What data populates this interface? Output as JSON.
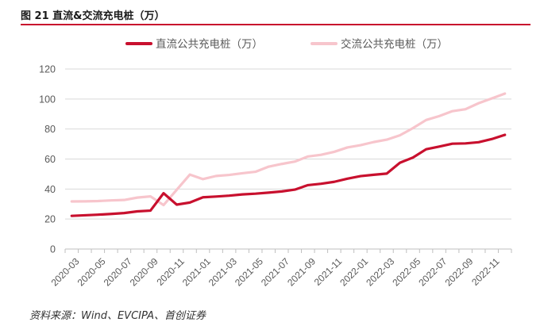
{
  "figure_title": "图 21 直流&交流充电桩（万）",
  "source_note": "资料来源：Wind、EVCIPA、首创证券",
  "colors": {
    "accent": "#c8102e",
    "dc": "#c8102e",
    "ac": "#f7c5cc",
    "grid": "#d9d9d9",
    "axis": "#bfbfbf",
    "text": "#595959"
  },
  "chart_data": {
    "type": "line",
    "title": "",
    "xlabel": "",
    "ylabel": "",
    "ylim": [
      0,
      120
    ],
    "yticks": [
      0,
      20,
      40,
      60,
      80,
      100,
      120
    ],
    "grid": true,
    "legend_position": "top",
    "x_tick_labels": [
      "2020-03",
      "2020-05",
      "2020-07",
      "2020-09",
      "2020-11",
      "2021-01",
      "2021-03",
      "2021-05",
      "2021-07",
      "2021-09",
      "2021-11",
      "2022-01",
      "2022-03",
      "2022-05",
      "2022-07",
      "2022-09",
      "2022-11"
    ],
    "x": [
      "2020-03",
      "2020-04",
      "2020-05",
      "2020-06",
      "2020-07",
      "2020-08",
      "2020-09",
      "2020-10",
      "2020-11",
      "2020-12",
      "2021-01",
      "2021-02",
      "2021-03",
      "2021-04",
      "2021-05",
      "2021-06",
      "2021-07",
      "2021-08",
      "2021-09",
      "2021-10",
      "2021-11",
      "2021-12",
      "2022-01",
      "2022-02",
      "2022-03",
      "2022-04",
      "2022-05",
      "2022-06",
      "2022-07",
      "2022-08",
      "2022-09",
      "2022-10",
      "2022-11",
      "2022-12"
    ],
    "series": [
      {
        "name": "直流公共充电桩（万）",
        "color": "#c8102e",
        "values": [
          22.1,
          22.5,
          22.9,
          23.4,
          24.0,
          25.1,
          25.6,
          37.2,
          29.6,
          31.0,
          34.5,
          35.0,
          35.6,
          36.4,
          36.9,
          37.6,
          38.4,
          39.6,
          42.6,
          43.5,
          44.8,
          46.9,
          48.6,
          49.5,
          50.3,
          57.5,
          61.0,
          66.5,
          68.3,
          70.2,
          70.4,
          71.2,
          73.3,
          76.1
        ]
      },
      {
        "name": "交流公共充电桩（万）",
        "color": "#f7c5cc",
        "values": [
          31.7,
          31.8,
          32.0,
          32.4,
          32.7,
          34.3,
          35.1,
          29.3,
          39.5,
          49.6,
          46.6,
          48.7,
          49.4,
          50.5,
          51.5,
          54.9,
          56.7,
          58.3,
          61.7,
          62.8,
          64.8,
          67.7,
          69.2,
          71.3,
          72.9,
          75.8,
          80.6,
          86.0,
          88.6,
          91.9,
          93.2,
          97.2,
          100.4,
          103.6
        ]
      }
    ]
  }
}
